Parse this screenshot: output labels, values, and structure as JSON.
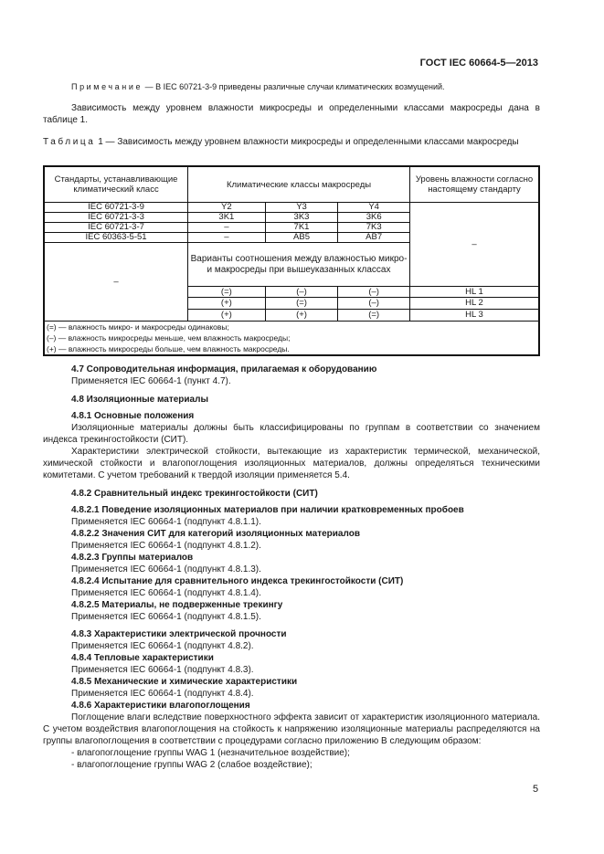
{
  "header": {
    "doc_code": "ГОСТ IEC 60664-5—2013"
  },
  "note": {
    "label": "Примечание",
    "text": " — В IEC 60721-3-9 приведены различные случаи климатических возмущений."
  },
  "intro": "Зависимость между уровнем влажности микросреды и определенными классами макросреды дана в таблице 1.",
  "table1": {
    "caption_label": "Таблица",
    "caption_text": " 1 — Зависимость между уровнем влажности микросреды и определенными классами макросреды",
    "headers": [
      "Стандарты, устанавливающие климатический класс",
      "Климатические классы макросреды",
      "Уровень влажности согласно настоящему стандарту"
    ],
    "rows": [
      [
        "IEC 60721-3-9",
        "Y2",
        "Y3",
        "Y4"
      ],
      [
        "IEC 60721-3-3",
        "3K1",
        "3K3",
        "3K6"
      ],
      [
        "IEC 60721-3-7",
        "–",
        "7K1",
        "7K3"
      ],
      [
        "IEC 60363-5-51",
        "–",
        "AB5",
        "AB7"
      ]
    ],
    "level_dash": "–",
    "left_dash": "–",
    "variants_label": "Варианты соотношения между влажностью микро- и макросреды при вышеуказанных классах",
    "variant_rows": [
      [
        "(=)",
        "(–)",
        "(–)",
        "HL 1"
      ],
      [
        "(+)",
        "(=)",
        "(–)",
        "HL 2"
      ],
      [
        "(+)",
        "(+)",
        "(=)",
        "HL 3"
      ]
    ],
    "legend": [
      "(=) — влажность микро- и макросреды одинаковы;",
      "(–) — влажность микросреды меньше, чем влажность макросреды;",
      "(+) — влажность микросреды больше, чем влажность макросреды."
    ]
  },
  "s47": {
    "title": "4.7 Сопроводительная информация, прилагаемая к оборудованию",
    "text": "Применяется IEC 60664-1 (пункт 4.7)."
  },
  "s48": {
    "title": "4.8 Изоляционные материалы"
  },
  "s481": {
    "title": "4.8.1 Основные положения",
    "p1": "Изоляционные материалы должны быть классифицированы по группам в соответствии со значением индекса трекингостойкости (СИТ).",
    "p2": "Характеристики электрической стойкости, вытекающие из характеристик термической, механической, химической стойкости и влагопоглощения изоляционных материалов, должны определяться техническими комитетами. С учетом требований к твердой изоляции применяется 5.4."
  },
  "s482": {
    "title": "4.8.2 Сравнительный индекс трекингостойкости (СИТ)",
    "items": [
      {
        "title": "4.8.2.1 Поведение изоляционных материалов при наличии кратковременных пробоев",
        "text": "Применяется IEC 60664-1 (подпункт 4.8.1.1)."
      },
      {
        "title": "4.8.2.2 Значения СИТ для категорий изоляционных материалов",
        "text": "Применяется IEC 60664-1 (подпункт 4.8.1.2)."
      },
      {
        "title": "4.8.2.3 Группы материалов",
        "text": "Применяется IEC 60664-1 (подпункт 4.8.1.3)."
      },
      {
        "title": "4.8.2.4 Испытание для сравнительного индекса трекингостойкости (СИТ)",
        "text": "Применяется IEC 60664-1 (подпункт 4.8.1.4)."
      },
      {
        "title": "4.8.2.5 Материалы, не подверженные трекингу",
        "text": "Применяется IEC 60664-1 (подпункт 4.8.1.5)."
      }
    ]
  },
  "s483_5": [
    {
      "title": "4.8.3 Характеристики электрической прочности",
      "text": "Применяется IEC 60664-1 (подпункт 4.8.2)."
    },
    {
      "title": "4.8.4 Тепловые характеристики",
      "text": "Применяется IEC 60664-1 (подпункт 4.8.3)."
    },
    {
      "title": "4.8.5 Механические и химические характеристики",
      "text": "Применяется IEC 60664-1 (подпункт 4.8.4)."
    }
  ],
  "s486": {
    "title": "4.8.6 Характеристики влагопоглощения",
    "p1": "Поглощение влаги вследствие поверхностного эффекта зависит от характеристик изоляционного материала. С учетом воздействия влагопоглощения на стойкость к напряжению изоляционные материалы распределяются на группы влагопоглощения в соответствии с процедурами согласно приложению В следующим образом:",
    "list": [
      "- влагопоглощение группы WAG 1 (незначительное воздействие);",
      "- влагопоглощение группы WAG 2 (слабое воздействие);"
    ]
  },
  "page_number": "5"
}
